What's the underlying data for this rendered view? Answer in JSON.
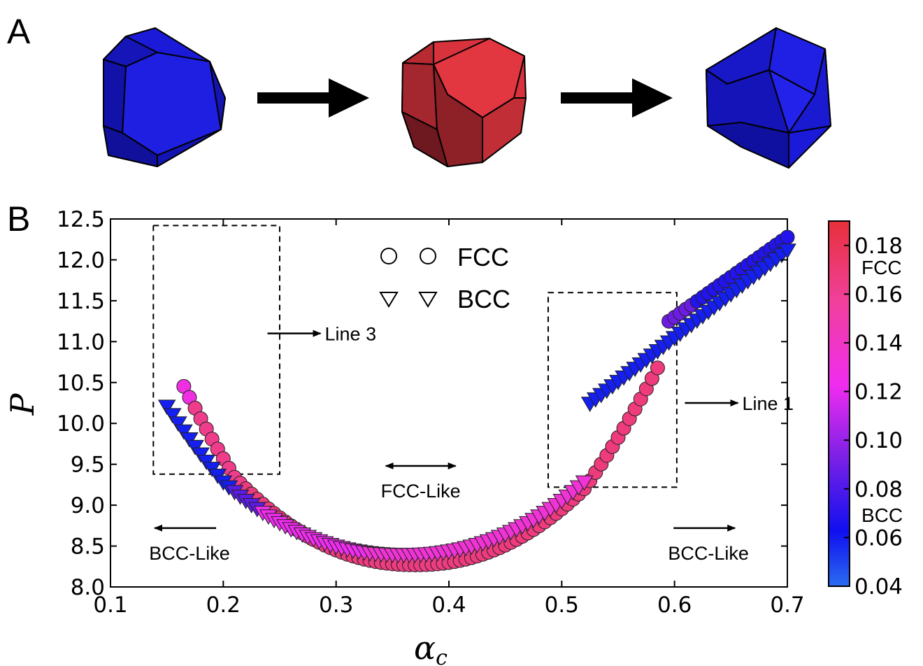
{
  "panel_a": {
    "label": "A",
    "shapes": [
      {
        "name": "bcc-polyhedron-1",
        "color": "#1a1ad8"
      },
      {
        "name": "fcc-polyhedron",
        "color": "#d8323c"
      },
      {
        "name": "bcc-polyhedron-2",
        "color": "#1a1ad8"
      }
    ]
  },
  "chart_data": {
    "type": "scatter",
    "panel_label": "B",
    "xlabel": "α",
    "xlabel_sub": "c",
    "ylabel": "P",
    "xlim": [
      0.1,
      0.7
    ],
    "ylim": [
      8.0,
      12.5
    ],
    "xticks": [
      "0.1",
      "0.2",
      "0.3",
      "0.4",
      "0.5",
      "0.6",
      "0.7"
    ],
    "yticks": [
      "8.0",
      "8.5",
      "9.0",
      "9.5",
      "10.0",
      "10.5",
      "11.0",
      "11.5",
      "12.0",
      "12.5"
    ],
    "grid": false,
    "legend": {
      "placement": "top-center",
      "entries": [
        {
          "label": "FCC",
          "marker": "circle"
        },
        {
          "label": "BCC",
          "marker": "triangle-down"
        }
      ]
    },
    "colorbar": {
      "ticks": [
        "0.18",
        "0.16",
        "0.14",
        "0.12",
        "0.10",
        "0.08",
        "0.06",
        "0.04"
      ],
      "range": [
        0.04,
        0.19
      ],
      "top_label": "FCC",
      "bottom_label": "BCC",
      "colors": [
        "#2b6cf0",
        "#1010f0",
        "#8020e0",
        "#f02cf0",
        "#f0409c",
        "#e8303a"
      ]
    },
    "boxes": [
      {
        "name": "line3-box",
        "x": [
          0.138,
          0.25
        ],
        "y": [
          9.38,
          12.42
        ]
      },
      {
        "name": "line1-box",
        "x": [
          0.488,
          0.602
        ],
        "y": [
          9.22,
          11.6
        ]
      }
    ],
    "annotations": [
      {
        "name": "line-3-label",
        "text": "Line 3",
        "arrow": "right",
        "x": 0.29,
        "y": 11.1
      },
      {
        "name": "line-1-label",
        "text": "Line 1",
        "arrow": "right",
        "x": 0.66,
        "y": 10.25
      },
      {
        "name": "fcc-like-label",
        "text": "FCC-Like",
        "arrow": "both",
        "x": 0.375,
        "y": 9.48
      },
      {
        "name": "bcc-like-left-label",
        "text": "BCC-Like",
        "arrow": "left",
        "x": 0.18,
        "y": 8.72
      },
      {
        "name": "bcc-like-right-label",
        "text": "BCC-Like",
        "arrow": "right",
        "x": 0.64,
        "y": 8.72
      }
    ],
    "series": [
      {
        "name": "FCC",
        "marker": "circle",
        "x_start": 0.165,
        "x_end": 0.7,
        "step": 0.005
      },
      {
        "name": "BCC",
        "marker": "triangle-down",
        "x_start": 0.15,
        "x_end": 0.7,
        "step": 0.005
      }
    ]
  }
}
